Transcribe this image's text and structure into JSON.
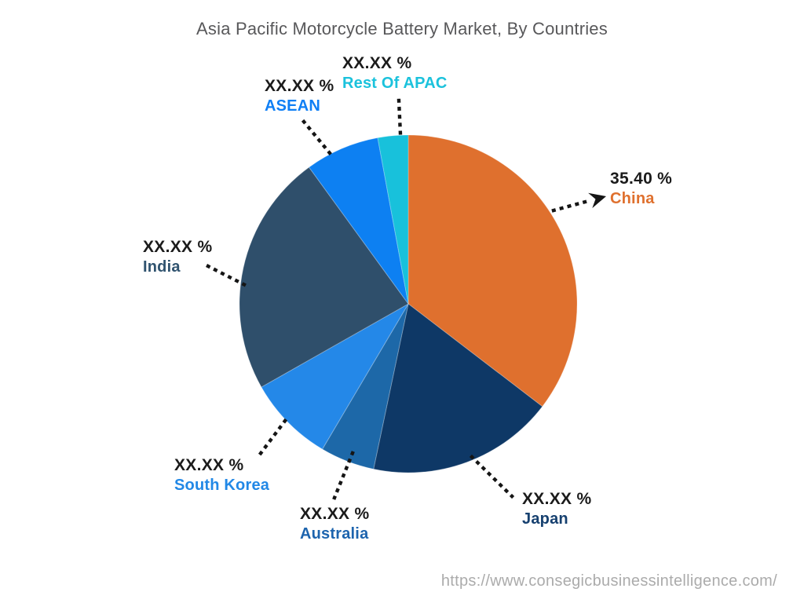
{
  "title": "Asia Pacific Motorcycle Battery Market, By Countries",
  "footer": {
    "url_text": "https://www.consegicbusinessintelligence.com/"
  },
  "chart_data": {
    "type": "pie",
    "title": "Asia Pacific Motorcycle Battery Market, By Countries",
    "unit": "%",
    "start_angle_deg": 0,
    "direction": "clockwise",
    "legend_position": "callout-labels",
    "slices": [
      {
        "name": "China",
        "display_value": "35.40 %",
        "value": 35.4,
        "color": "#DF702E",
        "label_color": "#DF702E"
      },
      {
        "name": "Japan",
        "display_value": "XX.XX %",
        "value": 17.9,
        "color": "#0E3866",
        "label_color": "#16406F"
      },
      {
        "name": "Australia",
        "display_value": "XX.XX %",
        "value": 5.2,
        "color": "#1D68A8",
        "label_color": "#1D64AE"
      },
      {
        "name": "South Korea",
        "display_value": "XX.XX %",
        "value": 8.3,
        "color": "#2488E8",
        "label_color": "#2288E6"
      },
      {
        "name": "India",
        "display_value": "XX.XX %",
        "value": 23.2,
        "color": "#2F4F6B",
        "label_color": "#30536F"
      },
      {
        "name": "ASEAN",
        "display_value": "XX.XX %",
        "value": 7.1,
        "color": "#0D80F2",
        "label_color": "#0F7FF5"
      },
      {
        "name": "Rest Of APAC",
        "display_value": "XX.XX %",
        "value": 2.9,
        "color": "#18C1DB",
        "label_color": "#1BC2DC"
      }
    ]
  }
}
